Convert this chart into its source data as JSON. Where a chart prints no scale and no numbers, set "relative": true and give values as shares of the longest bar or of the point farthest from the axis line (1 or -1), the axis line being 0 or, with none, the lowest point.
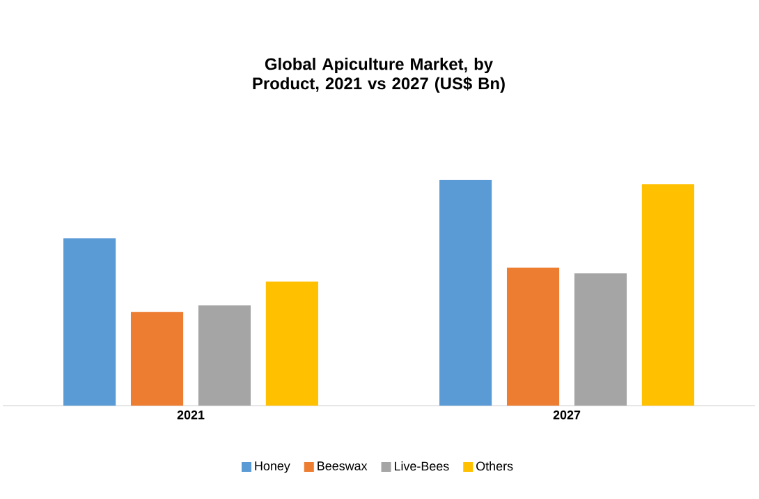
{
  "chart_data": {
    "type": "bar",
    "title": "Global Apiculture Market, by Product, 2021 vs 2027 (US$ Bn)",
    "relative": true,
    "categories": [
      "2021",
      "2027"
    ],
    "legend": "bottom",
    "series": [
      {
        "name": "Honey",
        "color": "#5b9bd5",
        "values": [
          0.741,
          1
        ]
      },
      {
        "name": "Beeswax",
        "color": "#ed7d31",
        "values": [
          0.414,
          0.611
        ]
      },
      {
        "name": "Live-Bees",
        "color": "#a5a5a5",
        "values": [
          0.444,
          0.586
        ]
      },
      {
        "name": "Others",
        "color": "#ffc000",
        "values": [
          0.549,
          0.981
        ]
      }
    ]
  }
}
